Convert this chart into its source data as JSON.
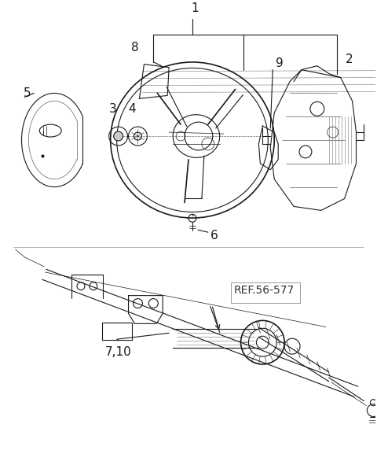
{
  "bg_color": "#ffffff",
  "line_color": "#1a1a1a",
  "label_color": "#000000",
  "figsize": [
    4.8,
    6.05
  ],
  "dpi": 100,
  "ref_label": "REF.56-577",
  "callout_710": "7,10"
}
